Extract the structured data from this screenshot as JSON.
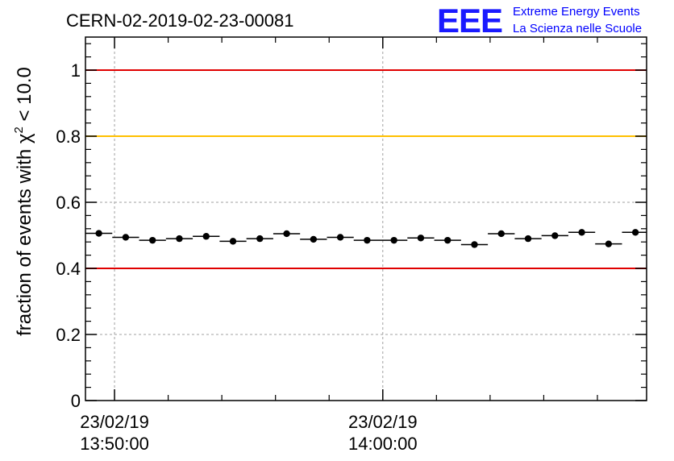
{
  "header": {
    "run_title": "CERN-02-2019-02-23-00081",
    "logo_text": "EEE",
    "org_line1": "Extreme Energy Events",
    "org_line2": "La Scienza nelle Scuole"
  },
  "colors": {
    "red_line": "#e00000",
    "orange_line": "#ffc000",
    "logo": "#1a1aff",
    "org_text": "#0000ff"
  },
  "chart_data": {
    "type": "scatter",
    "ylabel": {
      "prefix": "fraction of events with ",
      "chi": "χ",
      "sup": "2",
      "suffix": " < 10.0"
    },
    "ylim": [
      0,
      1.1
    ],
    "yticks": [
      "0",
      "0.2",
      "0.4",
      "0.6",
      "0.8",
      "1"
    ],
    "xlim": [
      "13:48:55",
      "14:09:50"
    ],
    "xticks": [
      {
        "t": "13:50:00",
        "date": "23/02/19",
        "time": "13:50:00"
      },
      {
        "t": "14:00:00",
        "date": "23/02/19",
        "time": "14:00:00"
      }
    ],
    "grid": true,
    "reference_lines": [
      {
        "y": 1.0,
        "color": "red"
      },
      {
        "y": 0.8,
        "color": "orange"
      },
      {
        "y": 0.4,
        "color": "red"
      }
    ],
    "series": [
      {
        "bin_width_s": 60,
        "points": [
          {
            "t": "13:49:25",
            "y": 0.506
          },
          {
            "t": "13:50:25",
            "y": 0.494
          },
          {
            "t": "13:51:25",
            "y": 0.485
          },
          {
            "t": "13:52:25",
            "y": 0.49
          },
          {
            "t": "13:53:25",
            "y": 0.497
          },
          {
            "t": "13:54:25",
            "y": 0.482
          },
          {
            "t": "13:55:25",
            "y": 0.49
          },
          {
            "t": "13:56:25",
            "y": 0.505
          },
          {
            "t": "13:57:25",
            "y": 0.488
          },
          {
            "t": "13:58:25",
            "y": 0.494
          },
          {
            "t": "13:59:25",
            "y": 0.485
          },
          {
            "t": "14:00:25",
            "y": 0.485
          },
          {
            "t": "14:01:25",
            "y": 0.492
          },
          {
            "t": "14:02:25",
            "y": 0.485
          },
          {
            "t": "14:03:25",
            "y": 0.472
          },
          {
            "t": "14:04:25",
            "y": 0.505
          },
          {
            "t": "14:05:25",
            "y": 0.49
          },
          {
            "t": "14:06:25",
            "y": 0.499
          },
          {
            "t": "14:07:25",
            "y": 0.509
          },
          {
            "t": "14:08:25",
            "y": 0.474
          },
          {
            "t": "14:09:25",
            "y": 0.509
          }
        ]
      }
    ]
  }
}
